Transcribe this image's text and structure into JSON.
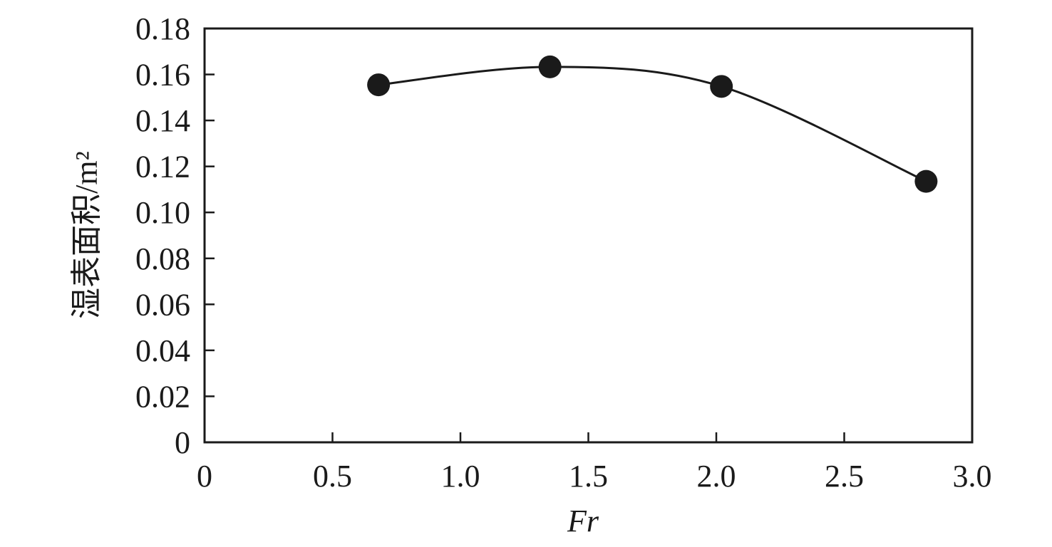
{
  "chart_data": {
    "type": "line",
    "xlabel": "Fr",
    "ylabel": "湿表面积/m²",
    "xlim": [
      0,
      3.0
    ],
    "ylim": [
      0,
      0.18
    ],
    "xticks": [
      0,
      0.5,
      1.0,
      1.5,
      2.0,
      2.5,
      3.0
    ],
    "xtick_labels": [
      "0",
      "0.5",
      "1.0",
      "1.5",
      "2.0",
      "2.5",
      "3.0"
    ],
    "yticks": [
      0,
      0.02,
      0.04,
      0.06,
      0.08,
      0.1,
      0.12,
      0.14,
      0.16,
      0.18
    ],
    "ytick_labels": [
      "0",
      "0.02",
      "0.04",
      "0.06",
      "0.08",
      "0.10",
      "0.12",
      "0.14",
      "0.16",
      "0.18"
    ],
    "grid": false,
    "smooth": true,
    "marker": "filled-circle",
    "series": [
      {
        "x": [
          0.68,
          1.35,
          2.02,
          2.82
        ],
        "y": [
          0.1555,
          0.1633,
          0.1548,
          0.1135
        ]
      }
    ]
  }
}
